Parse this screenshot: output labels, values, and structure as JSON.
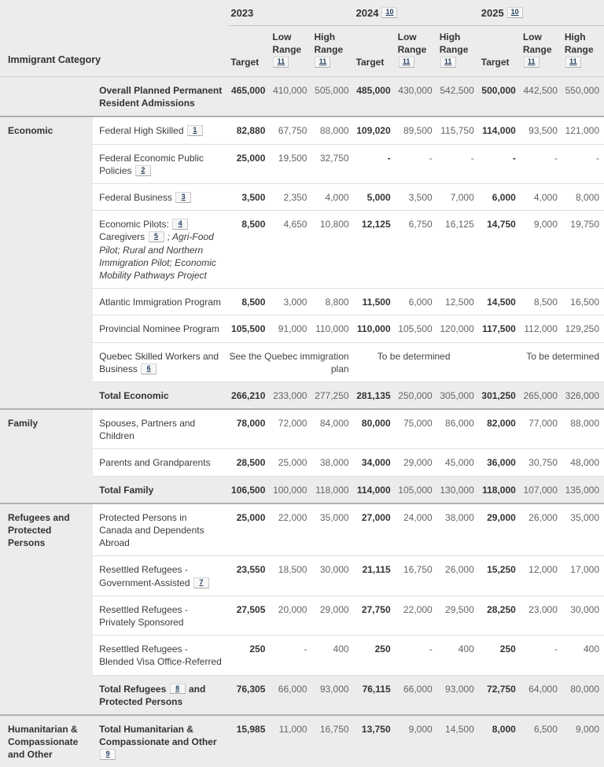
{
  "colors": {
    "footnote_link": "#284162",
    "header_bg": "#ececec",
    "total_row_bg": "#ececec",
    "section_border": "#b0b0b0",
    "row_border": "#dddddd"
  },
  "header": {
    "category_label": "Immigrant Category",
    "years": [
      {
        "label": "2023",
        "footnote": null
      },
      {
        "label": "2024",
        "footnote": "10"
      },
      {
        "label": "2025",
        "footnote": "10"
      }
    ],
    "measures": [
      {
        "label": "Target",
        "footnote": null
      },
      {
        "label": "Low Range",
        "footnote": "11"
      },
      {
        "label": "High Range",
        "footnote": "11"
      }
    ]
  },
  "sections": [
    {
      "label": "",
      "rows": [
        {
          "label": [
            {
              "t": "Overall Planned Permanent Resident Admissions"
            }
          ],
          "bold": true,
          "total": true,
          "values": [
            "465,000",
            "410,000",
            "505,000",
            "485,000",
            "430,000",
            "542,500",
            "500,000",
            "442,500",
            "550,000"
          ]
        }
      ]
    },
    {
      "label": "Economic",
      "rows": [
        {
          "label": [
            {
              "t": "Federal High Skilled "
            },
            {
              "fn": "1"
            }
          ],
          "bold": false,
          "total": false,
          "values": [
            "82,880",
            "67,750",
            "88,000",
            "109,020",
            "89,500",
            "115,750",
            "114,000",
            "93,500",
            "121,000"
          ]
        },
        {
          "label": [
            {
              "t": "Federal Economic Public Policies "
            },
            {
              "fn": "2"
            }
          ],
          "bold": false,
          "total": false,
          "values": [
            "25,000",
            "19,500",
            "32,750",
            "-",
            "-",
            "-",
            "-",
            "-",
            "-"
          ]
        },
        {
          "label": [
            {
              "t": "Federal Business "
            },
            {
              "fn": "3"
            }
          ],
          "bold": false,
          "total": false,
          "values": [
            "3,500",
            "2,350",
            "4,000",
            "5,000",
            "3,500",
            "7,000",
            "6,000",
            "4,000",
            "8,000"
          ]
        },
        {
          "label": [
            {
              "t": "Economic Pilots: "
            },
            {
              "fn": "4"
            },
            {
              "t": " Caregivers "
            },
            {
              "fn": "5"
            },
            {
              "i": " ; Agri-Food Pilot; Rural and Northern Immigration Pilot; Economic Mobility Pathways Project"
            }
          ],
          "bold": false,
          "total": false,
          "values": [
            "8,500",
            "4,650",
            "10,800",
            "12,125",
            "6,750",
            "16,125",
            "14,750",
            "9,000",
            "19,750"
          ]
        },
        {
          "label": [
            {
              "t": "Atlantic Immigration Program"
            }
          ],
          "bold": false,
          "total": false,
          "values": [
            "8,500",
            "3,000",
            "8,800",
            "11,500",
            "6,000",
            "12,500",
            "14,500",
            "8,500",
            "16,500"
          ]
        },
        {
          "label": [
            {
              "t": "Provincial Nominee Program"
            }
          ],
          "bold": false,
          "total": false,
          "values": [
            "105,500",
            "91,000",
            "110,000",
            "110,000",
            "105,500",
            "120,000",
            "117,500",
            "112,000",
            "129,250"
          ]
        },
        {
          "label": [
            {
              "t": "Quebec Skilled Workers and Business "
            },
            {
              "fn": "6"
            }
          ],
          "bold": false,
          "total": false,
          "spans": [
            {
              "text": "See the Quebec immigration plan",
              "cols": 3,
              "align": "right"
            },
            {
              "text": "To be determined",
              "cols": 3,
              "align": "center"
            },
            {
              "text": "To be determined",
              "cols": 3,
              "align": "right"
            }
          ]
        },
        {
          "label": [
            {
              "t": "Total Economic"
            }
          ],
          "bold": true,
          "total": true,
          "values": [
            "266,210",
            "233,000",
            "277,250",
            "281,135",
            "250,000",
            "305,000",
            "301,250",
            "265,000",
            "326,000"
          ]
        }
      ]
    },
    {
      "label": "Family",
      "rows": [
        {
          "label": [
            {
              "t": "Spouses, Partners and Children"
            }
          ],
          "bold": false,
          "total": false,
          "values": [
            "78,000",
            "72,000",
            "84,000",
            "80,000",
            "75,000",
            "86,000",
            "82,000",
            "77,000",
            "88,000"
          ]
        },
        {
          "label": [
            {
              "t": "Parents and Grandparents"
            }
          ],
          "bold": false,
          "total": false,
          "values": [
            "28,500",
            "25,000",
            "38,000",
            "34,000",
            "29,000",
            "45,000",
            "36,000",
            "30,750",
            "48,000"
          ]
        },
        {
          "label": [
            {
              "t": "Total Family"
            }
          ],
          "bold": true,
          "total": true,
          "values": [
            "106,500",
            "100,000",
            "118,000",
            "114,000",
            "105,000",
            "130,000",
            "118,000",
            "107,000",
            "135,000"
          ]
        }
      ]
    },
    {
      "label": "Refugees and Protected Persons",
      "rows": [
        {
          "label": [
            {
              "t": "Protected Persons in Canada and Dependents Abroad"
            }
          ],
          "bold": false,
          "total": false,
          "values": [
            "25,000",
            "22,000",
            "35,000",
            "27,000",
            "24,000",
            "38,000",
            "29,000",
            "26,000",
            "35,000"
          ]
        },
        {
          "label": [
            {
              "t": "Resettled Refugees - Government-Assisted "
            },
            {
              "fn": "7"
            }
          ],
          "bold": false,
          "total": false,
          "values": [
            "23,550",
            "18,500",
            "30,000",
            "21,115",
            "16,750",
            "26,000",
            "15,250",
            "12,000",
            "17,000"
          ]
        },
        {
          "label": [
            {
              "t": "Resettled Refugees - Privately Sponsored"
            }
          ],
          "bold": false,
          "total": false,
          "values": [
            "27,505",
            "20,000",
            "29,000",
            "27,750",
            "22,000",
            "29,500",
            "28,250",
            "23,000",
            "30,000"
          ]
        },
        {
          "label": [
            {
              "t": "Resettled Refugees - Blended Visa Office-Referred"
            }
          ],
          "bold": false,
          "total": false,
          "values": [
            "250",
            "-",
            "400",
            "250",
            "-",
            "400",
            "250",
            "-",
            "400"
          ]
        },
        {
          "label": [
            {
              "t": "Total Refugees "
            },
            {
              "fn": "8"
            },
            {
              "t": " and Protected Persons"
            }
          ],
          "bold": true,
          "total": true,
          "values": [
            "76,305",
            "66,000",
            "93,000",
            "76,115",
            "66,000",
            "93,000",
            "72,750",
            "64,000",
            "80,000"
          ]
        }
      ]
    },
    {
      "label": "Humanitarian & Compassionate and Other",
      "rows": [
        {
          "label": [
            {
              "t": "Total Humanitarian & Compassionate and Other "
            },
            {
              "fn": "9"
            }
          ],
          "bold": true,
          "total": true,
          "values": [
            "15,985",
            "11,000",
            "16,750",
            "13,750",
            "9,000",
            "14,500",
            "8,000",
            "6,500",
            "9,000"
          ]
        }
      ]
    }
  ]
}
